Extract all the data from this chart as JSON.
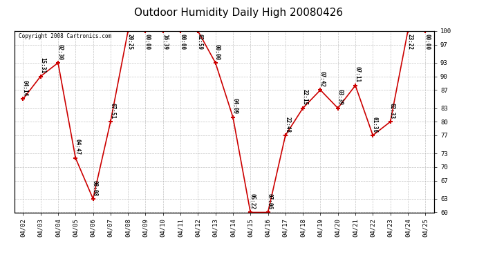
{
  "title": "Outdoor Humidity Daily High 20080426",
  "copyright": "Copyright 2008 Cartronics.com",
  "dates": [
    "04/02",
    "04/03",
    "04/04",
    "04/05",
    "04/06",
    "04/07",
    "04/08",
    "04/09",
    "04/10",
    "04/11",
    "04/12",
    "04/13",
    "04/14",
    "04/15",
    "04/16",
    "04/17",
    "04/18",
    "04/19",
    "04/20",
    "04/21",
    "04/22",
    "04/23",
    "04/24",
    "04/25"
  ],
  "values": [
    85,
    90,
    93,
    72,
    63,
    80,
    100,
    100,
    100,
    100,
    100,
    93,
    81,
    60,
    60,
    77,
    83,
    87,
    83,
    88,
    77,
    80,
    100,
    100
  ],
  "time_labels": [
    "04:14",
    "15:31",
    "02:30",
    "04:47",
    "08:08",
    "07:51",
    "20:25",
    "00:00",
    "16:39",
    "00:00",
    "02:59",
    "00:00",
    "04:09",
    "05:22",
    "07:06",
    "22:48",
    "22:15",
    "07:42",
    "03:39",
    "07:11",
    "01:36",
    "02:33",
    "23:22",
    "00:00"
  ],
  "line_color": "#cc0000",
  "marker_color": "#cc0000",
  "bg_color": "#ffffff",
  "grid_color": "#aaaaaa",
  "title_fontsize": 11,
  "label_fontsize": 6.5,
  "ylim": [
    60,
    100
  ],
  "yticks": [
    60,
    63,
    67,
    70,
    73,
    77,
    80,
    83,
    87,
    90,
    93,
    97,
    100
  ]
}
